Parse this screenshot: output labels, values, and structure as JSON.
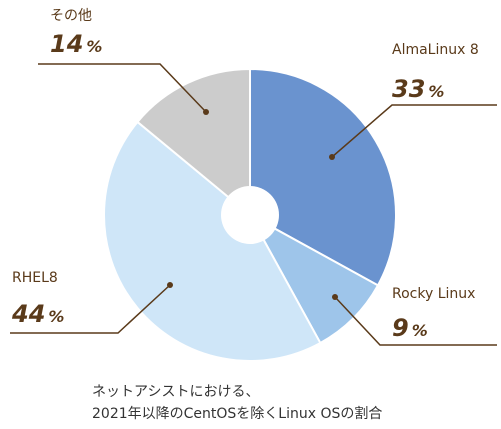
{
  "chart_data": {
    "type": "pie",
    "donut": true,
    "start_angle_deg": 0,
    "direction": "clockwise",
    "percent_sign": "%",
    "slices": [
      {
        "label": "AlmaLinux 8",
        "value": 33,
        "color": "#6a93cf"
      },
      {
        "label": "Rocky Linux",
        "value": 9,
        "color": "#9ec5ea"
      },
      {
        "label": "RHEL8",
        "value": 44,
        "color": "#cfe6f8"
      },
      {
        "label": "その他",
        "value": 14,
        "color": "#cccccc"
      }
    ],
    "leader_color": "#5a3a1a",
    "note_lines": [
      "ネットアシストにおける、",
      "2021年以降のCentOSを除くLinux OSの割合"
    ]
  }
}
